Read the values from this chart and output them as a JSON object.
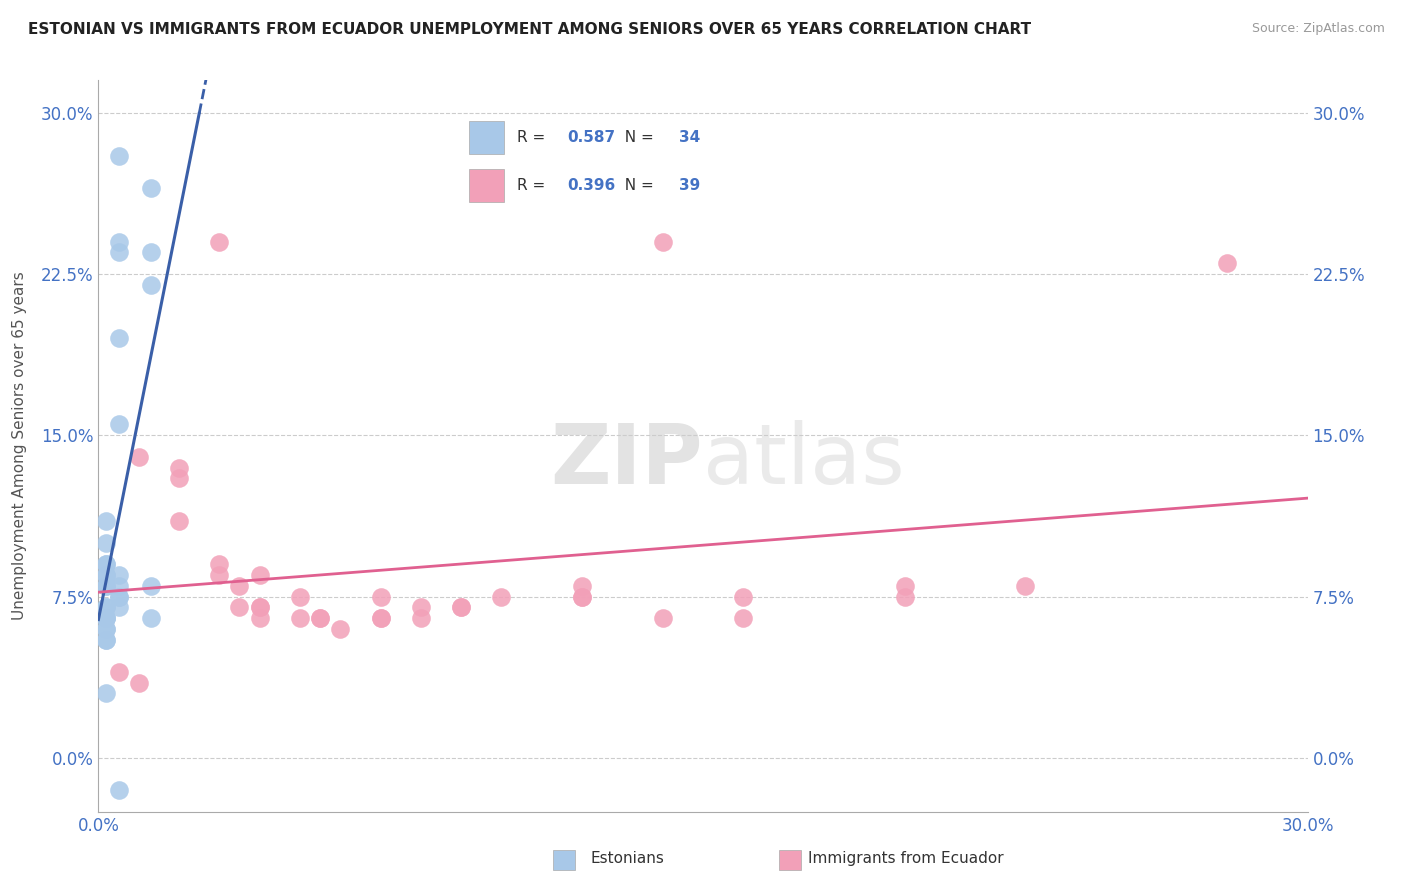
{
  "title": "ESTONIAN VS IMMIGRANTS FROM ECUADOR UNEMPLOYMENT AMONG SENIORS OVER 65 YEARS CORRELATION CHART",
  "source": "Source: ZipAtlas.com",
  "ylabel": "Unemployment Among Seniors over 65 years",
  "xmin": 0.0,
  "xmax": 0.3,
  "ymin": -0.025,
  "ymax": 0.315,
  "y_ticks": [
    0.0,
    0.075,
    0.15,
    0.225,
    0.3
  ],
  "y_tick_labels": [
    "0.0%",
    "7.5%",
    "15.0%",
    "22.5%",
    "30.0%"
  ],
  "x_tick_left": "0.0%",
  "x_tick_right": "30.0%",
  "legend_label_1": "Estonians",
  "legend_label_2": "Immigrants from Ecuador",
  "r1": "0.587",
  "n1": "34",
  "r2": "0.396",
  "n2": "39",
  "color_blue": "#A8C8E8",
  "color_blue_line": "#3A5FA8",
  "color_pink": "#F2A0B8",
  "color_pink_line": "#E06090",
  "color_grid": "#CCCCCC",
  "estonians_x": [
    0.005,
    0.013,
    0.005,
    0.005,
    0.013,
    0.013,
    0.005,
    0.005,
    0.002,
    0.002,
    0.002,
    0.002,
    0.002,
    0.002,
    0.002,
    0.002,
    0.002,
    0.002,
    0.002,
    0.002,
    0.002,
    0.002,
    0.002,
    0.005,
    0.005,
    0.005,
    0.005,
    0.013,
    0.005,
    0.013,
    0.002,
    0.002,
    0.002,
    0.005
  ],
  "estonians_y": [
    0.28,
    0.265,
    0.24,
    0.235,
    0.235,
    0.22,
    0.195,
    0.155,
    0.11,
    0.1,
    0.09,
    0.09,
    0.085,
    0.085,
    0.08,
    0.08,
    0.07,
    0.07,
    0.065,
    0.065,
    0.065,
    0.06,
    0.06,
    0.085,
    0.08,
    0.075,
    0.075,
    0.08,
    0.07,
    0.065,
    0.055,
    0.055,
    0.03,
    -0.015
  ],
  "ecuador_x": [
    0.03,
    0.14,
    0.005,
    0.01,
    0.02,
    0.02,
    0.02,
    0.03,
    0.03,
    0.035,
    0.035,
    0.04,
    0.04,
    0.04,
    0.04,
    0.05,
    0.05,
    0.055,
    0.055,
    0.06,
    0.07,
    0.07,
    0.07,
    0.08,
    0.08,
    0.09,
    0.09,
    0.1,
    0.12,
    0.12,
    0.12,
    0.14,
    0.16,
    0.2,
    0.2,
    0.16,
    0.23,
    0.28,
    0.01
  ],
  "ecuador_y": [
    0.24,
    0.24,
    0.04,
    0.14,
    0.135,
    0.11,
    0.13,
    0.09,
    0.085,
    0.08,
    0.07,
    0.07,
    0.085,
    0.07,
    0.065,
    0.075,
    0.065,
    0.065,
    0.065,
    0.06,
    0.075,
    0.065,
    0.065,
    0.065,
    0.07,
    0.07,
    0.07,
    0.075,
    0.075,
    0.075,
    0.08,
    0.065,
    0.075,
    0.075,
    0.08,
    0.065,
    0.08,
    0.23,
    0.035
  ]
}
